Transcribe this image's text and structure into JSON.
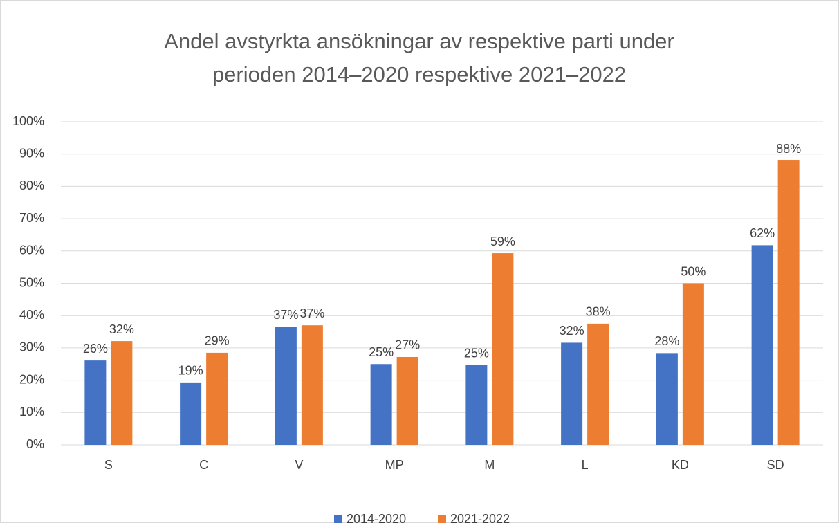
{
  "chart_data": {
    "type": "bar",
    "title": "Andel avstyrkta ansökningar av respektive parti under perioden 2014–2020 respektive 2021–2022",
    "categories": [
      "S",
      "C",
      "V",
      "MP",
      "M",
      "L",
      "KD",
      "SD"
    ],
    "series": [
      {
        "name": "2014-2020",
        "color": "#4472c4",
        "values": [
          26.1,
          19.3,
          36.6,
          25.0,
          24.7,
          31.6,
          28.4,
          61.8
        ],
        "value_labels": [
          "26%",
          "19%",
          "37%",
          "25%",
          "25%",
          "32%",
          "28%",
          "62%"
        ]
      },
      {
        "name": "2021-2022",
        "color": "#ed7d31",
        "values": [
          32.1,
          28.5,
          37.0,
          27.2,
          59.3,
          37.5,
          50.0,
          88.0
        ],
        "value_labels": [
          "32%",
          "29%",
          "37%",
          "27%",
          "59%",
          "38%",
          "50%",
          "88%"
        ]
      }
    ],
    "ylim": [
      0,
      100
    ],
    "yticks": [
      {
        "value": 0,
        "label": "0%"
      },
      {
        "value": 10,
        "label": "10%"
      },
      {
        "value": 20,
        "label": "20%"
      },
      {
        "value": 30,
        "label": "30%"
      },
      {
        "value": 40,
        "label": "40%"
      },
      {
        "value": 50,
        "label": "50%"
      },
      {
        "value": 60,
        "label": "60%"
      },
      {
        "value": 70,
        "label": "70%"
      },
      {
        "value": 80,
        "label": "80%"
      },
      {
        "value": 90,
        "label": "90%"
      },
      {
        "value": 100,
        "label": "100%"
      }
    ],
    "grid": true,
    "legend": "bottom"
  }
}
